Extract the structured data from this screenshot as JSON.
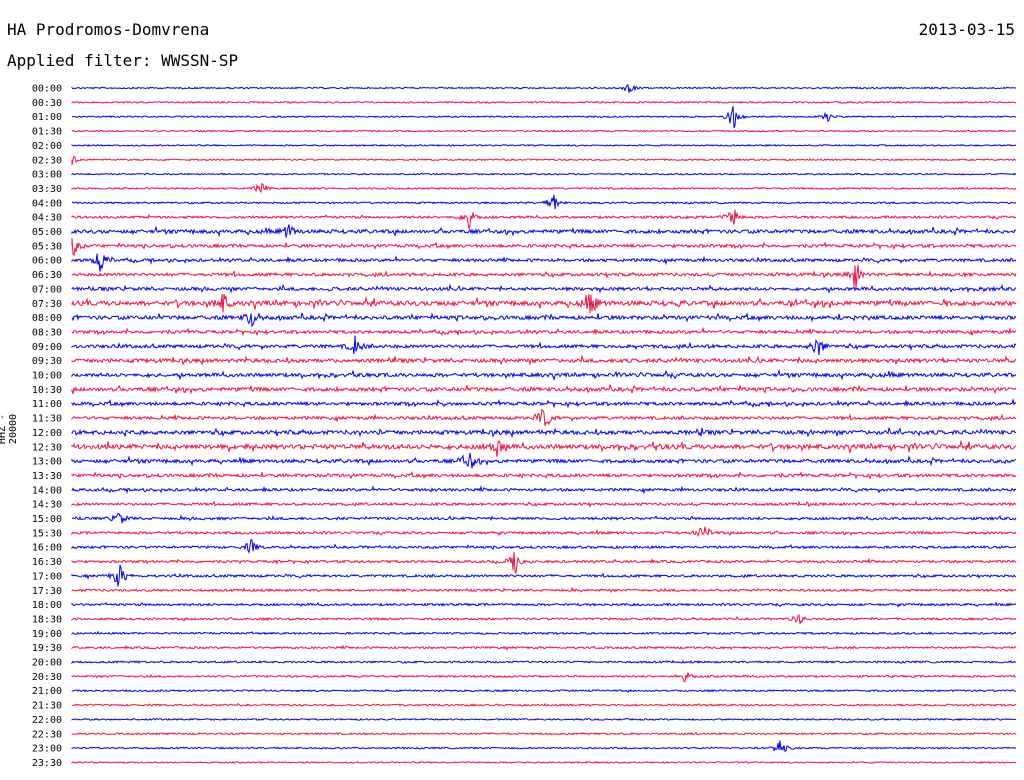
{
  "header": {
    "station": "HA Prodromos-Domvrena",
    "date": "2013-03-15",
    "filter": "Applied filter: WWSSN-SP"
  },
  "channel_label": "HHZ - 20000",
  "colors": {
    "line_a": "#0000ee",
    "line_b": "#ee1144",
    "text": "#000000"
  },
  "chart_data": {
    "type": "line",
    "subtype": "helicorder",
    "rows": [
      "00:00",
      "00:30",
      "01:00",
      "01:30",
      "02:00",
      "02:30",
      "03:00",
      "03:30",
      "04:00",
      "04:30",
      "05:00",
      "05:30",
      "06:00",
      "06:30",
      "07:00",
      "07:30",
      "08:00",
      "08:30",
      "09:00",
      "09:30",
      "10:00",
      "10:30",
      "11:00",
      "11:30",
      "12:00",
      "12:30",
      "13:00",
      "13:30",
      "14:00",
      "14:30",
      "15:00",
      "15:30",
      "16:00",
      "16:30",
      "17:00",
      "17:30",
      "18:00",
      "18:30",
      "19:00",
      "19:30",
      "20:00",
      "20:30",
      "21:00",
      "21:30",
      "22:00",
      "22:30",
      "23:00",
      "23:30"
    ],
    "activity": [
      0.05,
      0.1,
      0.05,
      0.05,
      0.05,
      0.08,
      0.05,
      0.12,
      0.15,
      0.35,
      0.7,
      0.55,
      0.5,
      0.55,
      0.6,
      1.0,
      0.75,
      0.55,
      0.6,
      0.75,
      0.7,
      0.75,
      0.6,
      0.55,
      0.8,
      1.0,
      0.65,
      0.55,
      0.45,
      0.4,
      0.4,
      0.35,
      0.35,
      0.35,
      0.35,
      0.3,
      0.3,
      0.25,
      0.2,
      0.25,
      0.2,
      0.2,
      0.15,
      0.15,
      0.1,
      0.15,
      0.1,
      0.05
    ],
    "events": [
      {
        "row": "00:00",
        "t": 0.59,
        "amp": 5
      },
      {
        "row": "01:00",
        "t": 0.7,
        "amp": 15
      },
      {
        "row": "01:00",
        "t": 0.8,
        "amp": 5
      },
      {
        "row": "02:30",
        "t": 0.0,
        "amp": 6
      },
      {
        "row": "03:30",
        "t": 0.2,
        "amp": 6
      },
      {
        "row": "04:00",
        "t": 0.51,
        "amp": 10
      },
      {
        "row": "04:30",
        "t": 0.42,
        "amp": 12
      },
      {
        "row": "04:30",
        "t": 0.7,
        "amp": 12
      },
      {
        "row": "05:00",
        "t": 0.23,
        "amp": 10
      },
      {
        "row": "05:30",
        "t": 0.0,
        "amp": 14
      },
      {
        "row": "06:00",
        "t": 0.03,
        "amp": 12
      },
      {
        "row": "06:30",
        "t": 0.83,
        "amp": 16
      },
      {
        "row": "07:30",
        "t": 0.16,
        "amp": 10
      },
      {
        "row": "07:30",
        "t": 0.55,
        "amp": 12
      },
      {
        "row": "08:00",
        "t": 0.19,
        "amp": 10
      },
      {
        "row": "09:00",
        "t": 0.3,
        "amp": 10
      },
      {
        "row": "09:00",
        "t": 0.79,
        "amp": 12
      },
      {
        "row": "11:30",
        "t": 0.5,
        "amp": 12
      },
      {
        "row": "12:30",
        "t": 0.45,
        "amp": 10
      },
      {
        "row": "13:00",
        "t": 0.42,
        "amp": 14
      },
      {
        "row": "15:00",
        "t": 0.05,
        "amp": 8
      },
      {
        "row": "15:30",
        "t": 0.67,
        "amp": 10
      },
      {
        "row": "16:00",
        "t": 0.19,
        "amp": 8
      },
      {
        "row": "16:30",
        "t": 0.47,
        "amp": 14
      },
      {
        "row": "17:00",
        "t": 0.05,
        "amp": 14
      },
      {
        "row": "18:30",
        "t": 0.77,
        "amp": 6
      },
      {
        "row": "20:30",
        "t": 0.65,
        "amp": 6
      },
      {
        "row": "23:00",
        "t": 0.75,
        "amp": 10
      }
    ]
  }
}
